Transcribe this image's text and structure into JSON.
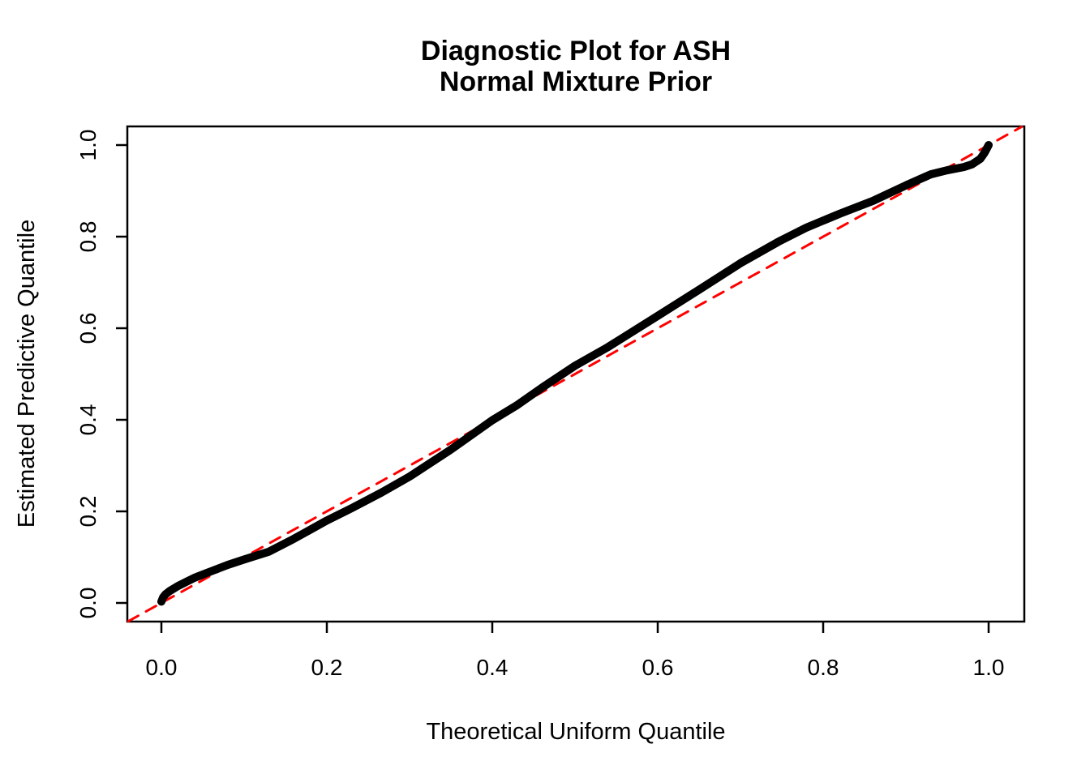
{
  "title": {
    "line1": "Diagnostic Plot for ASH",
    "line2": "Normal Mixture Prior"
  },
  "colors": {
    "curve": "#000000",
    "reference_line": "#FF0000",
    "axis": "#000000",
    "background": "#FFFFFF"
  },
  "chart_data": {
    "type": "line",
    "title": "Diagnostic Plot for ASH\nNormal Mixture Prior",
    "xlabel": "Theoretical Uniform Quantile",
    "ylabel": "Estimated Predictive Quantile",
    "xlim": [
      -0.04,
      1.04
    ],
    "ylim": [
      -0.04,
      1.04
    ],
    "grid": false,
    "legend": "none",
    "x_ticks": [
      0.0,
      0.2,
      0.4,
      0.6,
      0.8,
      1.0
    ],
    "y_ticks": [
      0.0,
      0.2,
      0.4,
      0.6,
      0.8,
      1.0
    ],
    "x_tick_labels": [
      "0.0",
      "0.2",
      "0.4",
      "0.6",
      "0.8",
      "1.0"
    ],
    "y_tick_labels": [
      "0.0",
      "0.2",
      "0.4",
      "0.6",
      "0.8",
      "1.0"
    ],
    "series": [
      {
        "name": "estimated-predictive-quantile-curve",
        "type": "line",
        "style": "solid",
        "color": "#000000",
        "stroke_width": 10,
        "points": [
          [
            0.0,
            0.003
          ],
          [
            0.002,
            0.012
          ],
          [
            0.005,
            0.019
          ],
          [
            0.01,
            0.026
          ],
          [
            0.02,
            0.037
          ],
          [
            0.03,
            0.046
          ],
          [
            0.04,
            0.055
          ],
          [
            0.06,
            0.069
          ],
          [
            0.08,
            0.083
          ],
          [
            0.1,
            0.095
          ],
          [
            0.13,
            0.112
          ],
          [
            0.16,
            0.14
          ],
          [
            0.2,
            0.18
          ],
          [
            0.23,
            0.207
          ],
          [
            0.266,
            0.241
          ],
          [
            0.3,
            0.276
          ],
          [
            0.35,
            0.335
          ],
          [
            0.4,
            0.399
          ],
          [
            0.43,
            0.432
          ],
          [
            0.46,
            0.47
          ],
          [
            0.5,
            0.518
          ],
          [
            0.54,
            0.559
          ],
          [
            0.6,
            0.627
          ],
          [
            0.65,
            0.684
          ],
          [
            0.7,
            0.742
          ],
          [
            0.746,
            0.789
          ],
          [
            0.78,
            0.82
          ],
          [
            0.82,
            0.85
          ],
          [
            0.86,
            0.878
          ],
          [
            0.9,
            0.912
          ],
          [
            0.93,
            0.936
          ],
          [
            0.95,
            0.945
          ],
          [
            0.97,
            0.952
          ],
          [
            0.98,
            0.958
          ],
          [
            0.99,
            0.97
          ],
          [
            0.995,
            0.983
          ],
          [
            1.0,
            1.0
          ]
        ]
      },
      {
        "name": "reference-diagonal-y-equals-x",
        "type": "line",
        "style": "dashed",
        "color": "#FF0000",
        "stroke_width": 3,
        "points": [
          [
            -0.04,
            -0.04
          ],
          [
            1.04,
            1.04
          ]
        ]
      }
    ]
  }
}
